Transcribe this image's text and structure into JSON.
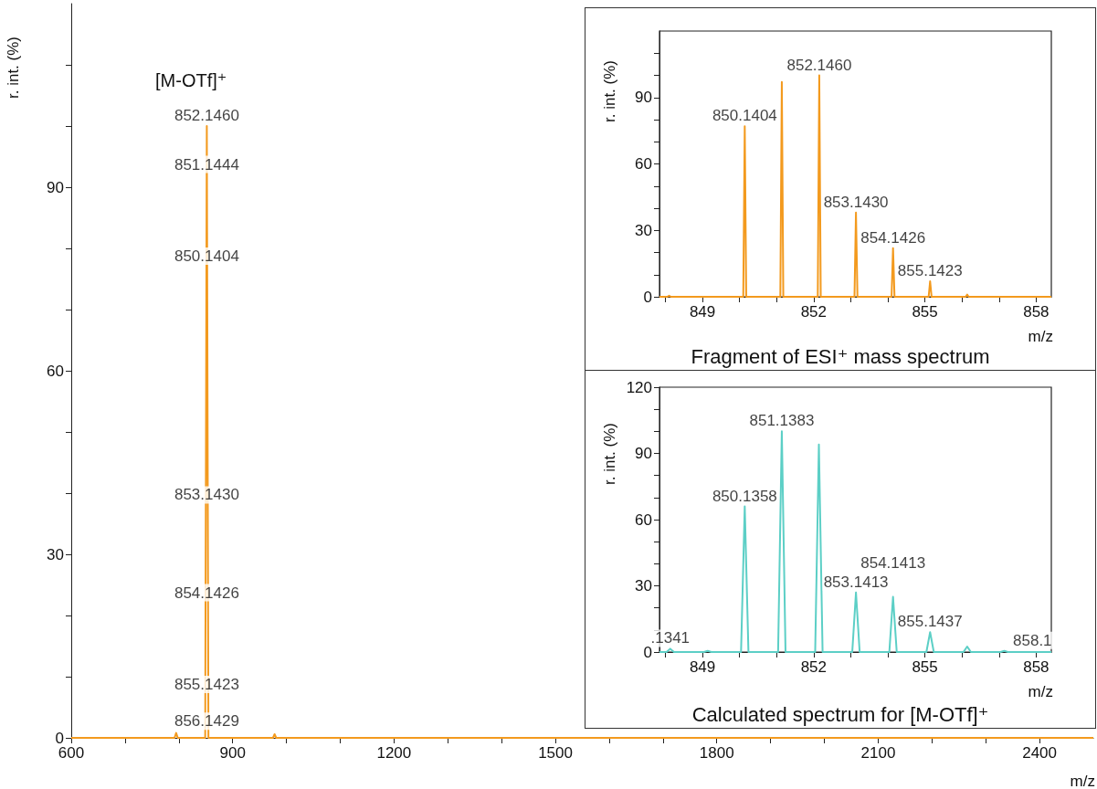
{
  "chart_data": [
    {
      "type": "line",
      "xlabel": "m/z",
      "ylabel": "r. int. (%)",
      "x": [
        600,
        792,
        795,
        798,
        849,
        852,
        855,
        975,
        978,
        981,
        2500
      ],
      "series": [
        {
          "color": "#f39a1e",
          "values": [
            0,
            0,
            0.8,
            0,
            0,
            100,
            0,
            0,
            0.6,
            0,
            0
          ]
        }
      ],
      "xlim": [
        600,
        2500
      ],
      "xticks": [
        600,
        {
          "value": 700,
          "label": null
        },
        {
          "value": 800,
          "label": null
        },
        900,
        {
          "value": 1000,
          "label": null
        },
        {
          "value": 1100,
          "label": null
        },
        1200,
        {
          "value": 1300,
          "label": null
        },
        {
          "value": 1400,
          "label": null
        },
        1500,
        {
          "value": 1600,
          "label": null
        },
        {
          "value": 1700,
          "label": null
        },
        1800,
        {
          "value": 1900,
          "label": null
        },
        {
          "value": 2000,
          "label": null
        },
        2100,
        {
          "value": 2200,
          "label": null
        },
        {
          "value": 2300,
          "label": null
        },
        2400
      ],
      "ylim": [
        0,
        120
      ],
      "yticks": [
        0,
        {
          "value": 10,
          "label": null
        },
        {
          "value": 20,
          "label": null
        },
        30,
        {
          "value": 40,
          "label": null
        },
        {
          "value": 50,
          "label": null
        },
        60,
        {
          "value": 70,
          "label": null
        },
        {
          "value": 80,
          "label": null
        },
        90,
        {
          "value": 100,
          "label": null
        },
        {
          "value": 110,
          "label": null
        }
      ],
      "annotations": [
        "[M-OTf]⁺",
        {
          "text": "852.1460",
          "x": 852,
          "y": 100
        },
        {
          "text": "851.1444",
          "x": 852,
          "y": 92
        },
        {
          "text": "850.1404",
          "x": 852,
          "y": 77
        },
        {
          "text": "853.1430",
          "x": 852,
          "y": 38
        },
        {
          "text": "854.1426",
          "x": 852,
          "y": 22
        },
        {
          "text": "855.1423",
          "x": 852,
          "y": 7
        },
        {
          "text": "856.1429",
          "x": 852,
          "y": 1
        }
      ],
      "grid": false,
      "marker": "none"
    },
    {
      "type": "line",
      "title": "Fragment of ESI⁺ mass spectrum",
      "xlabel": "m/z",
      "ylabel": "r. int. (%)",
      "x": [
        847.84,
        848.05,
        848.1,
        848.15,
        850.1,
        850.14,
        850.18,
        851.1,
        851.14,
        851.18,
        852.11,
        852.15,
        852.19,
        853.1,
        853.14,
        853.18,
        854.1,
        854.14,
        854.18,
        855.1,
        855.14,
        855.18,
        856.1,
        856.14,
        856.18,
        858.41
      ],
      "series": [
        {
          "color": "#f39a1e",
          "values": [
            0,
            0,
            0.5,
            0,
            0,
            77,
            0,
            0,
            97,
            0,
            0,
            100,
            0,
            0,
            38,
            0,
            0,
            22,
            0,
            0,
            7,
            0,
            0,
            1,
            0,
            0
          ]
        }
      ],
      "xlim": [
        847.84,
        858.41
      ],
      "xticks": [
        {
          "value": 848,
          "label": null
        },
        849,
        {
          "value": 850,
          "label": null
        },
        {
          "value": 851,
          "label": null
        },
        852,
        {
          "value": 853,
          "label": null
        },
        {
          "value": 854,
          "label": null
        },
        855,
        {
          "value": 856,
          "label": null
        },
        {
          "value": 857,
          "label": null
        },
        858
      ],
      "ylim": [
        0,
        120
      ],
      "yticks": [
        0,
        {
          "value": 10,
          "label": null
        },
        {
          "value": 20,
          "label": null
        },
        30,
        {
          "value": 40,
          "label": null
        },
        {
          "value": 50,
          "label": null
        },
        60,
        {
          "value": 70,
          "label": null
        },
        {
          "value": 80,
          "label": null
        },
        90,
        {
          "value": 100,
          "label": null
        },
        {
          "value": 110,
          "label": null
        }
      ],
      "annotations": [
        {
          "text": "852.1460",
          "x": 852.15,
          "y": 100
        },
        {
          "text": "850.1404",
          "x": 850.14,
          "y": 77
        },
        {
          "text": "853.1430",
          "x": 853.14,
          "y": 38
        },
        {
          "text": "854.1426",
          "x": 854.14,
          "y": 22
        },
        {
          "text": "855.1423",
          "x": 855.14,
          "y": 7
        }
      ],
      "grid": false,
      "marker": "none"
    },
    {
      "type": "line",
      "title": "Calculated spectrum for [M-OTf]⁺",
      "xlabel": "m/z",
      "ylabel": "r. int. (%)",
      "x": [
        847.84,
        848.03,
        848.13,
        848.23,
        849.04,
        849.14,
        849.24,
        850.04,
        850.14,
        850.24,
        851.04,
        851.14,
        851.24,
        852.04,
        852.14,
        852.24,
        853.04,
        853.14,
        853.24,
        854.04,
        854.14,
        854.24,
        855.04,
        855.14,
        855.24,
        856.04,
        856.14,
        856.24,
        857.04,
        857.14,
        857.24,
        858.41
      ],
      "series": [
        {
          "color": "#5ccfc6",
          "values": [
            0,
            0,
            1.5,
            0,
            0,
            0.5,
            0,
            0,
            66,
            0,
            0,
            100,
            0,
            0,
            94,
            0,
            0,
            27,
            0,
            0,
            25,
            0,
            0,
            9,
            0,
            0,
            2.5,
            0,
            0,
            0.5,
            0,
            0
          ]
        }
      ],
      "xlim": [
        847.84,
        858.41
      ],
      "xticks": [
        {
          "value": 848,
          "label": null
        },
        849,
        {
          "value": 850,
          "label": null
        },
        {
          "value": 851,
          "label": null
        },
        852,
        {
          "value": 853,
          "label": null
        },
        {
          "value": 854,
          "label": null
        },
        855,
        {
          "value": 856,
          "label": null
        },
        {
          "value": 857,
          "label": null
        },
        858
      ],
      "ylim": [
        0,
        120
      ],
      "yticks": [
        0,
        {
          "value": 10,
          "label": null
        },
        {
          "value": 20,
          "label": null
        },
        30,
        {
          "value": 40,
          "label": null
        },
        {
          "value": 50,
          "label": null
        },
        60,
        {
          "value": 70,
          "label": null
        },
        {
          "value": 80,
          "label": null
        },
        90,
        {
          "value": 100,
          "label": null
        },
        {
          "value": 110,
          "label": null
        },
        120
      ],
      "annotations": [
        {
          "text": "851.1383",
          "x": 851.14,
          "y": 100
        },
        {
          "text": "850.1358",
          "x": 850.14,
          "y": 66
        },
        {
          "text": "853.1413",
          "x": 853.14,
          "y": 27
        },
        {
          "text": "854.1413",
          "x": 854.14,
          "y": 25
        },
        {
          "text": "855.1437",
          "x": 855.14,
          "y": 9
        },
        {
          "text": ".1341",
          "x": 848.13,
          "y": 1.5
        },
        {
          "text": "858.1",
          "x": 857.9,
          "y": 0.5
        }
      ],
      "grid": false,
      "marker": "none"
    }
  ]
}
